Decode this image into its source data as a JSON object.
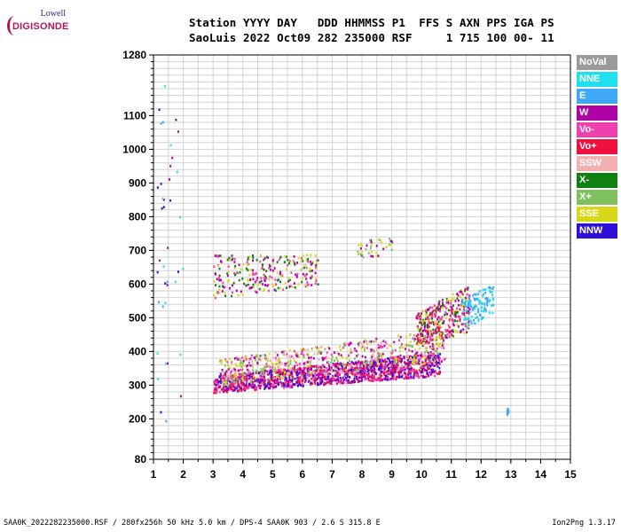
{
  "logo": {
    "line1": "Lowell",
    "line2": "DIGISONDE"
  },
  "header": {
    "line1": "Station YYYY DAY   DDD HHMMSS P1  FFS S AXN PPS IGA PS",
    "line2": "SaoLuis 2022 Oct09 282 235000 RSF     1 715 100 00- 11"
  },
  "footer": {
    "left": "SAA0K_2022282235000.RSF / 280fx256h 50 kHz 5.0 km / DPS-4 SAA0K 903 / 2.6 S 315.8 E",
    "right": "Ion2Png 1.3.17"
  },
  "legend": [
    {
      "label": "NoVal",
      "color": "#9a9a9a"
    },
    {
      "label": "NNE",
      "color": "#20e0f0"
    },
    {
      "label": "E",
      "color": "#40a8f8"
    },
    {
      "label": "W",
      "color": "#b000a8"
    },
    {
      "label": "Vo-",
      "color": "#f040b0"
    },
    {
      "label": "Vo+",
      "color": "#f01040"
    },
    {
      "label": "SSW",
      "color": "#f4b0b0"
    },
    {
      "label": "X-",
      "color": "#108010"
    },
    {
      "label": "X+",
      "color": "#80c060"
    },
    {
      "label": "SSE",
      "color": "#d8d818"
    },
    {
      "label": "NNW",
      "color": "#3010d8"
    }
  ],
  "chart_data": {
    "type": "scatter",
    "xlim": [
      1,
      15
    ],
    "ylim": [
      80,
      1280
    ],
    "x_ticks": [
      "1",
      "2",
      "3",
      "4",
      "5",
      "6",
      "7",
      "8",
      "9",
      "10",
      "11",
      "12",
      "13",
      "14",
      "15"
    ],
    "y_ticks": [
      {
        "value": 80,
        "label": "80"
      },
      {
        "value": 200,
        "label": "200"
      },
      {
        "value": 300,
        "label": "300"
      },
      {
        "value": 400,
        "label": "400"
      },
      {
        "value": 500,
        "label": "500"
      },
      {
        "value": 600,
        "label": "600"
      },
      {
        "value": 700,
        "label": "700"
      },
      {
        "value": 800,
        "label": "800"
      },
      {
        "value": 900,
        "label": "900"
      },
      {
        "value": 1000,
        "label": "1000"
      },
      {
        "value": 1100,
        "label": "1100"
      },
      {
        "value": 1280,
        "label": "1280"
      }
    ],
    "grid": true,
    "legend_position": "right",
    "clusters": [
      {
        "name": "F-trace O",
        "x": [
          3.0,
          10.6
        ],
        "y": [
          280,
          330
        ],
        "y_end": [
          330,
          400
        ],
        "colors": [
          "Vo+",
          "Vo-",
          "W",
          "NNW"
        ],
        "density": 1400
      },
      {
        "name": "F-trace spread",
        "x": [
          3.2,
          10.8
        ],
        "y": [
          300,
          380
        ],
        "y_end": [
          370,
          470
        ],
        "colors": [
          "SSE",
          "W",
          "Vo-",
          "X+",
          "SSW"
        ],
        "density": 700
      },
      {
        "name": "F-trace upper",
        "x": [
          9.8,
          11.6
        ],
        "y": [
          420,
          520
        ],
        "y_end": [
          460,
          600
        ],
        "colors": [
          "X-",
          "W",
          "Vo+",
          "SSE",
          "Vo-"
        ],
        "density": 350
      },
      {
        "name": "F-trace high-freq cusp",
        "x": [
          11.3,
          12.4
        ],
        "y": [
          460,
          560
        ],
        "y_end": [
          520,
          600
        ],
        "colors": [
          "NNE",
          "E"
        ],
        "density": 120
      },
      {
        "name": "Multihop",
        "x": [
          3.0,
          6.5
        ],
        "y": [
          560,
          690
        ],
        "y_end": [
          600,
          690
        ],
        "colors": [
          "W",
          "Vo-",
          "SSE",
          "X-"
        ],
        "density": 260
      },
      {
        "name": "Multihop upper",
        "x": [
          7.8,
          9.0
        ],
        "y": [
          680,
          730
        ],
        "y_end": [
          690,
          740
        ],
        "colors": [
          "SSE",
          "X+",
          "W"
        ],
        "density": 40
      },
      {
        "name": "Low-freq scatter",
        "x": [
          1.0,
          2.0
        ],
        "y": [
          180,
          1200
        ],
        "y_end": [
          180,
          1200
        ],
        "colors": [
          "NNE",
          "W",
          "E",
          "NNW"
        ],
        "density": 40
      },
      {
        "name": "Isolated echo",
        "x": [
          12.85,
          12.9
        ],
        "y": [
          215,
          235
        ],
        "y_end": [
          215,
          235
        ],
        "colors": [
          "E"
        ],
        "density": 8
      }
    ]
  }
}
